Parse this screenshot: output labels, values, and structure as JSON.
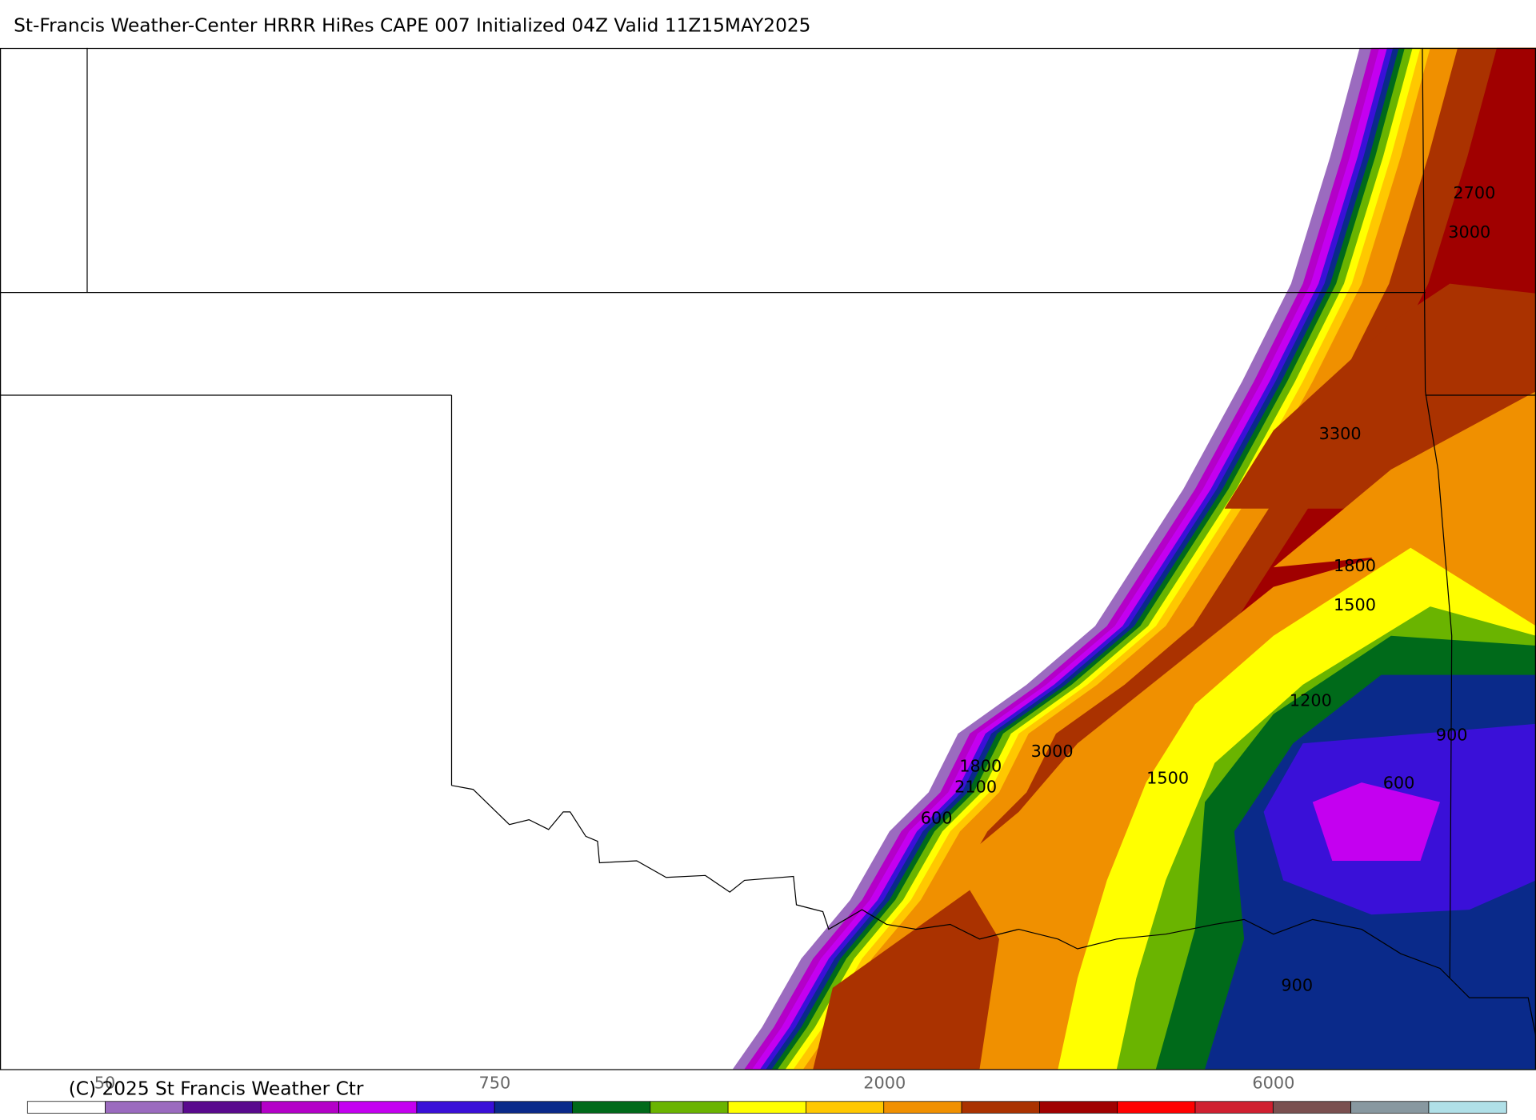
{
  "header": {
    "title": "St-Francis Weather-Center HRRR HiRes CAPE  007 Initialized  04Z Valid 11Z15MAY2025"
  },
  "contour_labels": [
    "2700",
    "3000",
    "3300",
    "1800",
    "1500",
    "1200",
    "900",
    "600",
    "1800",
    "2100",
    "3000",
    "1500",
    "600",
    "900"
  ],
  "colorbar": {
    "labels": [
      "50",
      "750",
      "2000",
      "6000"
    ],
    "colors": [
      "#ffffff",
      "#9b6bbf",
      "#5a0a8e",
      "#b400c8",
      "#c400f0",
      "#3a10d8",
      "#0a2a8a",
      "#006a1a",
      "#6ab400",
      "#ffff00",
      "#ffc800",
      "#f09000",
      "#aa3200",
      "#a00000",
      "#ff0000",
      "#d02030",
      "#7a5050",
      "#8898a0",
      "#b0e0e8"
    ]
  },
  "footer": {
    "copyright": "(C) 2025 St Francis Weather Ctr"
  }
}
